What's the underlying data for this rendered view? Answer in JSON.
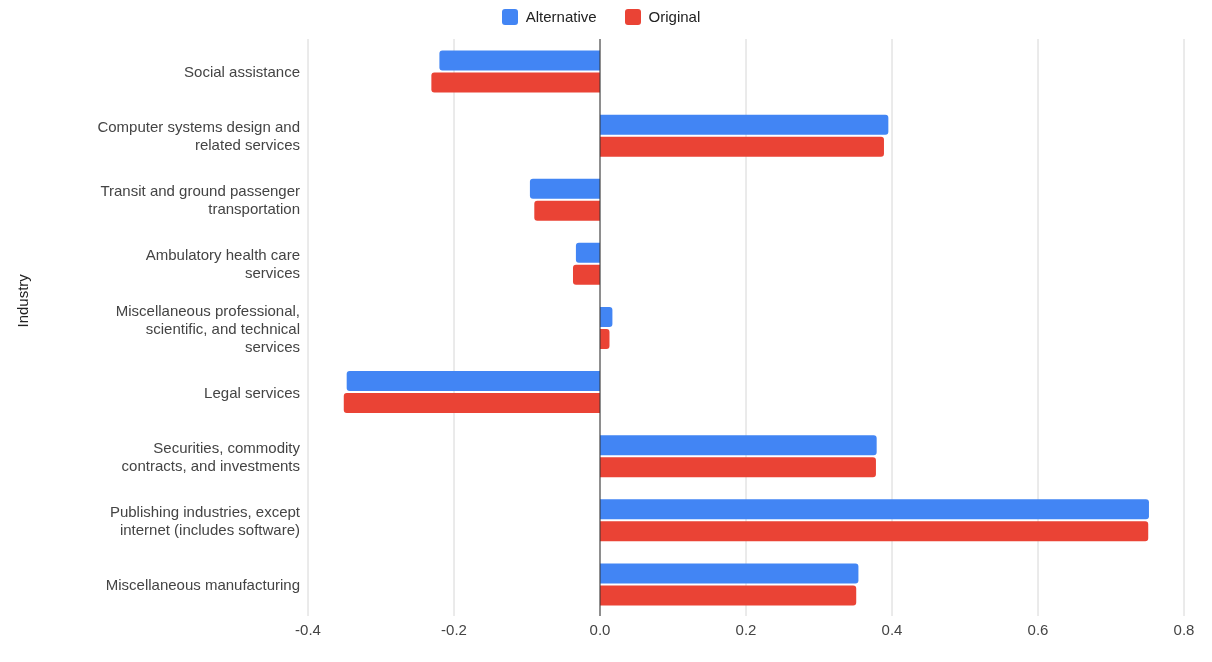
{
  "chart_data": {
    "type": "bar",
    "orientation": "horizontal",
    "ylabel": "Industry",
    "categories": [
      "Social assistance",
      "Computer systems design and related services",
      "Transit and ground passenger transportation",
      "Ambulatory health care services",
      "Miscellaneous professional, scientific, and technical services",
      "Legal services",
      "Securities, commodity contracts, and investments",
      "Publishing industries, except internet (includes software)",
      "Miscellaneous manufacturing"
    ],
    "series": [
      {
        "name": "Alternative",
        "color": "#4285f4",
        "values": [
          -0.22,
          0.395,
          -0.096,
          -0.033,
          0.017,
          -0.347,
          0.379,
          0.752,
          0.354
        ]
      },
      {
        "name": "Original",
        "color": "#ea4335",
        "values": [
          -0.231,
          0.389,
          -0.09,
          -0.037,
          0.013,
          -0.351,
          0.378,
          0.751,
          0.351
        ]
      }
    ],
    "xlim": [
      -0.4,
      0.8
    ],
    "xticks": [
      -0.4,
      -0.2,
      {
        "value": 0,
        "label": "0.0"
      },
      0.2,
      0.4,
      0.6,
      0.8
    ],
    "grid": "x",
    "legend": "top"
  }
}
